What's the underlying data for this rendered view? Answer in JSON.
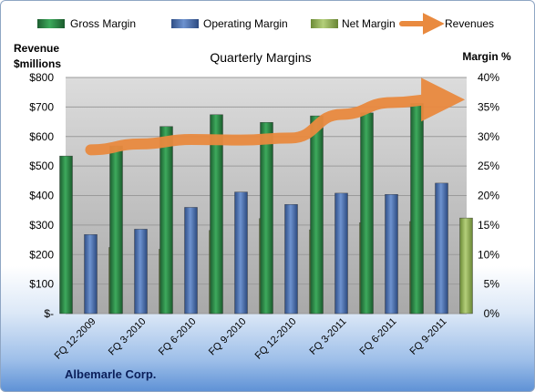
{
  "chart_data": {
    "type": "bar",
    "title": "Quarterly Margins",
    "company": "Albemarle Corp.",
    "left_axis_title": [
      "Revenue",
      "$millions"
    ],
    "right_axis_title": "Margin %",
    "left_ticks": [
      "$-",
      "$100",
      "$200",
      "$300",
      "$400",
      "$500",
      "$600",
      "$700",
      "$800"
    ],
    "right_ticks": [
      "0%",
      "5%",
      "10%",
      "15%",
      "20%",
      "25%",
      "30%",
      "35%",
      "40%"
    ],
    "ylim_left": [
      0,
      800
    ],
    "ylim_right": [
      0,
      40
    ],
    "grid": true,
    "legend_position": "top",
    "categories": [
      "FQ 12-2009",
      "FQ 3-2010",
      "FQ 6-2010",
      "FQ 9-2010",
      "FQ 12-2010",
      "FQ 3-2011",
      "FQ 6-2011",
      "FQ 9-2011"
    ],
    "series": [
      {
        "name": "Gross Margin",
        "axis": "right",
        "color": "#2e8b4a",
        "values": [
          26.7,
          28.4,
          31.7,
          33.7,
          32.4,
          33.5,
          34.0,
          35.6
        ]
      },
      {
        "name": "Operating Margin",
        "axis": "right",
        "color": "#4f74b4",
        "values": [
          13.4,
          14.3,
          18.0,
          20.6,
          18.5,
          20.4,
          20.2,
          22.1
        ]
      },
      {
        "name": "Net Margin",
        "axis": "right",
        "color": "#9bbb59",
        "values": [
          11.2,
          10.9,
          14.1,
          16.1,
          14.2,
          15.4,
          15.6,
          16.2
        ]
      },
      {
        "name": "Revenues",
        "axis": "left",
        "type": "line",
        "color": "#e98a3f",
        "values": [
          555,
          575,
          590,
          588,
          595,
          675,
          715,
          725
        ]
      }
    ]
  }
}
